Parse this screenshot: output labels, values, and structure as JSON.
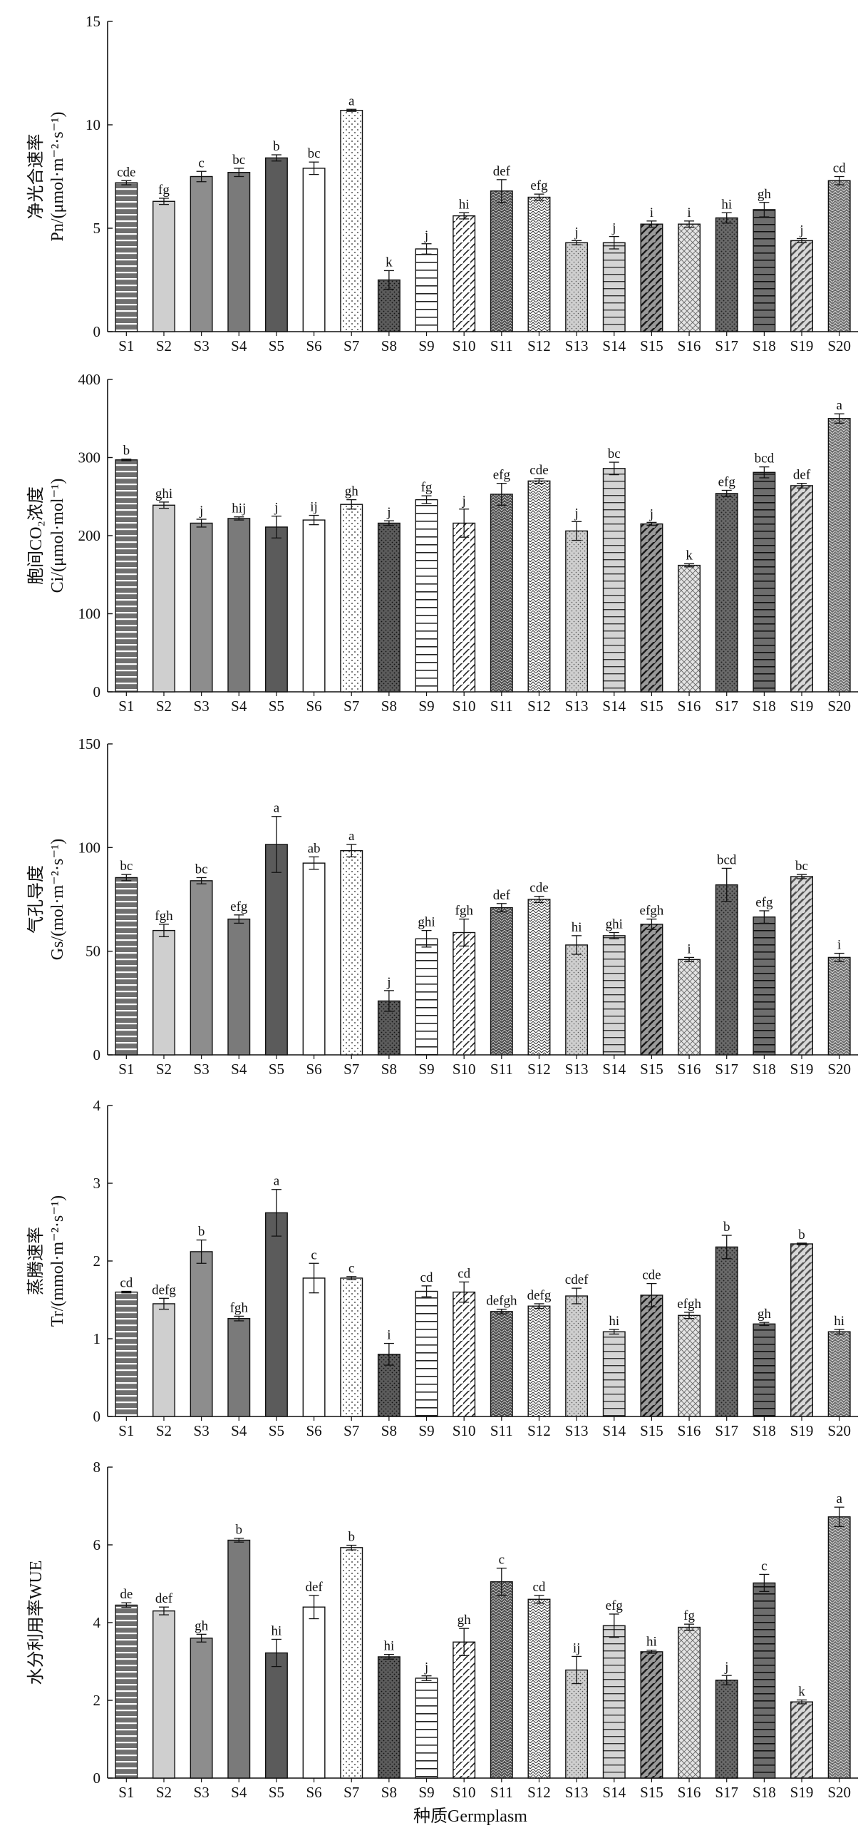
{
  "x_axis_label": "种质Germplasm",
  "categories": [
    "S1",
    "S2",
    "S3",
    "S4",
    "S5",
    "S6",
    "S7",
    "S8",
    "S9",
    "S10",
    "S11",
    "S12",
    "S13",
    "S14",
    "S15",
    "S16",
    "S17",
    "S18",
    "S19",
    "S20"
  ],
  "patterns": [
    "hlines-gray",
    "lightgray",
    "midgray",
    "gray",
    "darkgray",
    "white",
    "dots",
    "darkdots",
    "hlines-white",
    "diag",
    "darkweave",
    "weave",
    "lightdots",
    "hlines-light",
    "diag-gray",
    "crosshatch-light",
    "darkdots2",
    "hlines-dark",
    "diag-light",
    "darkweave2"
  ],
  "chart_data": [
    {
      "type": "bar",
      "id": "pn",
      "ylabel_line1": "净光合速率",
      "ylabel_line2": "Pn/(μmol·m⁻²·s⁻¹)",
      "ylim": [
        0,
        15
      ],
      "yticks": [
        0,
        5,
        10,
        15
      ],
      "values": [
        7.2,
        6.3,
        7.5,
        7.7,
        8.4,
        7.9,
        10.7,
        2.5,
        4.0,
        5.6,
        6.8,
        6.5,
        4.3,
        4.3,
        5.2,
        5.2,
        5.5,
        5.9,
        4.4,
        7.3
      ],
      "errors": [
        0.1,
        0.15,
        0.25,
        0.2,
        0.15,
        0.3,
        0.05,
        0.45,
        0.25,
        0.15,
        0.55,
        0.15,
        0.1,
        0.3,
        0.15,
        0.15,
        0.25,
        0.35,
        0.1,
        0.2
      ],
      "labels": [
        "cde",
        "fg",
        "c",
        "bc",
        "b",
        "bc",
        "a",
        "k",
        "j",
        "hi",
        "def",
        "efg",
        "j",
        "j",
        "i",
        "i",
        "hi",
        "gh",
        "j",
        "cd"
      ]
    },
    {
      "type": "bar",
      "id": "ci",
      "ylabel_line1": "胞间CO₂浓度",
      "ylabel_line2": "Ci/(μmol·mol⁻¹)",
      "ylim": [
        0,
        400
      ],
      "yticks": [
        0,
        100,
        200,
        300,
        400
      ],
      "values": [
        297,
        239,
        216,
        222,
        211,
        220,
        240,
        216,
        246,
        216,
        253,
        270,
        206,
        286,
        215,
        162,
        254,
        281,
        264,
        350
      ],
      "errors": [
        1,
        4,
        5,
        2,
        14,
        6,
        6,
        3,
        5,
        18,
        14,
        3,
        12,
        8,
        2,
        2,
        4,
        7,
        3,
        6
      ],
      "labels": [
        "b",
        "ghi",
        "j",
        "hij",
        "j",
        "ij",
        "gh",
        "j",
        "fg",
        "j",
        "efg",
        "cde",
        "j",
        "bc",
        "j",
        "k",
        "efg",
        "bcd",
        "def",
        "a"
      ]
    },
    {
      "type": "bar",
      "id": "gs",
      "ylabel_line1": "气孔导度",
      "ylabel_line2": "Gs/(mol·m⁻²·s⁻¹)",
      "ylim": [
        0,
        150
      ],
      "yticks": [
        0,
        50,
        100,
        150
      ],
      "values": [
        85.5,
        60,
        84,
        65.5,
        101.5,
        92.5,
        98.5,
        26,
        56,
        59,
        71,
        75,
        53,
        57.5,
        63,
        46,
        82,
        66.5,
        86,
        47
      ],
      "errors": [
        1.5,
        3,
        1.5,
        2,
        13.5,
        3,
        3,
        5,
        4,
        6.5,
        2,
        1.5,
        4.5,
        1.5,
        2.5,
        1,
        8,
        3,
        1,
        2
      ],
      "labels": [
        "bc",
        "fgh",
        "bc",
        "efg",
        "a",
        "ab",
        "a",
        "j",
        "ghi",
        "fgh",
        "def",
        "cde",
        "hi",
        "ghi",
        "efgh",
        "i",
        "bcd",
        "efg",
        "bc",
        "i"
      ]
    },
    {
      "type": "bar",
      "id": "tr",
      "ylabel_line1": "蒸腾速率",
      "ylabel_line2": "Tr/(mmol·m⁻²·s⁻¹)",
      "ylim": [
        0,
        4
      ],
      "yticks": [
        0,
        1,
        2,
        3,
        4
      ],
      "values": [
        1.6,
        1.45,
        2.12,
        1.26,
        2.62,
        1.78,
        1.78,
        0.8,
        1.61,
        1.6,
        1.35,
        1.42,
        1.55,
        1.09,
        1.56,
        1.3,
        2.18,
        1.19,
        2.22,
        1.09
      ],
      "errors": [
        0.01,
        0.07,
        0.15,
        0.03,
        0.3,
        0.19,
        0.02,
        0.14,
        0.07,
        0.13,
        0.03,
        0.03,
        0.1,
        0.03,
        0.15,
        0.04,
        0.15,
        0.02,
        0.01,
        0.03
      ],
      "labels": [
        "cd",
        "defg",
        "b",
        "fgh",
        "a",
        "c",
        "c",
        "i",
        "cd",
        "cd",
        "defgh",
        "defg",
        "cdef",
        "hi",
        "cde",
        "efgh",
        "b",
        "gh",
        "b",
        "hi"
      ]
    },
    {
      "type": "bar",
      "id": "wue",
      "ylabel_line1": "水分利用率WUE",
      "ylabel_line2": "",
      "ylim": [
        0,
        8
      ],
      "yticks": [
        0,
        2,
        4,
        6,
        8
      ],
      "values": [
        4.45,
        4.3,
        3.6,
        6.12,
        3.22,
        4.4,
        5.93,
        3.12,
        2.57,
        3.5,
        5.05,
        4.6,
        2.78,
        3.92,
        3.25,
        3.88,
        2.52,
        5.02,
        1.96,
        6.72
      ],
      "errors": [
        0.06,
        0.1,
        0.1,
        0.05,
        0.35,
        0.3,
        0.06,
        0.06,
        0.06,
        0.35,
        0.35,
        0.1,
        0.35,
        0.3,
        0.04,
        0.08,
        0.12,
        0.22,
        0.05,
        0.25
      ],
      "labels": [
        "de",
        "def",
        "gh",
        "b",
        "hi",
        "def",
        "b",
        "hi",
        "j",
        "gh",
        "c",
        "cd",
        "ij",
        "efg",
        "hi",
        "fg",
        "j",
        "c",
        "k",
        "a"
      ]
    }
  ]
}
